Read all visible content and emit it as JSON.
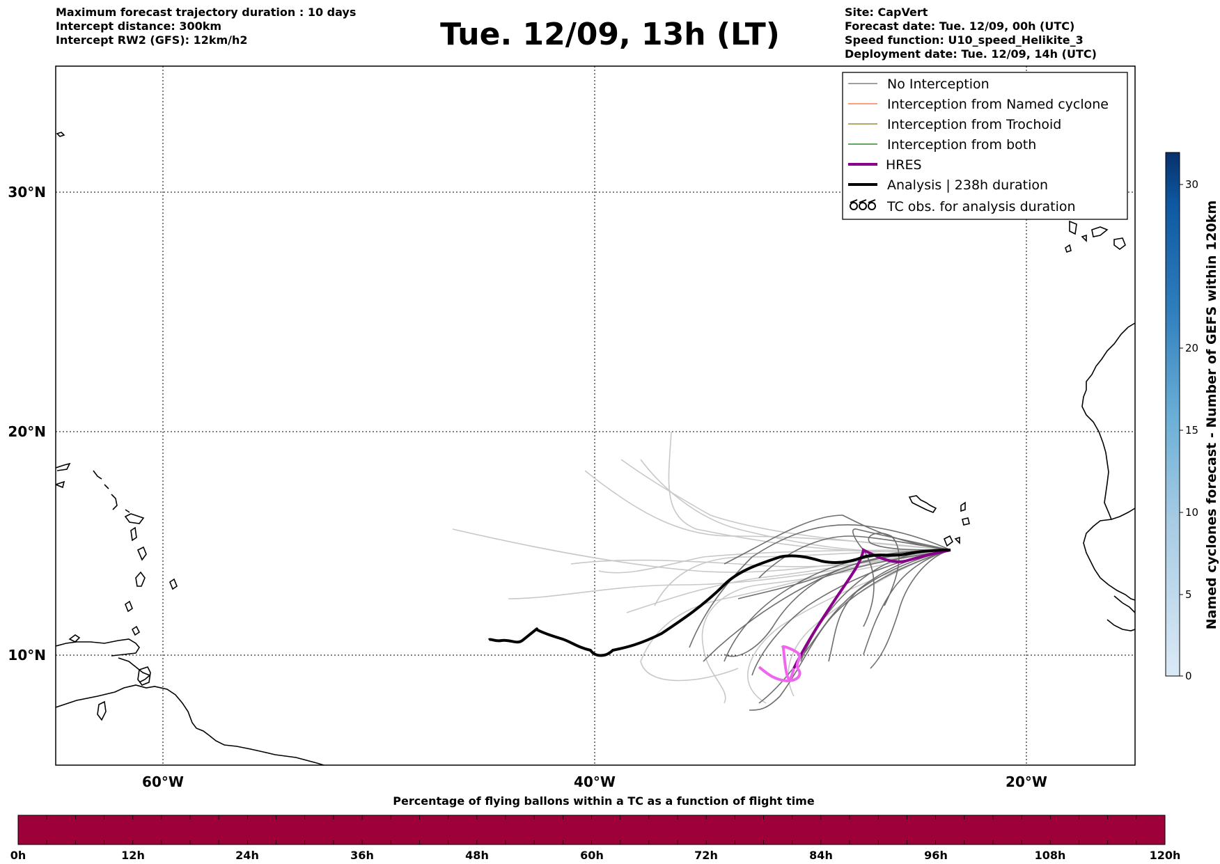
{
  "header_left": [
    "Maximum forecast trajectory duration : 10 days",
    "Intercept distance: 300km",
    "Intercept RW2 (GFS):  12km/h2"
  ],
  "header_right": [
    "Site: CapVert",
    "Forecast date: Tue. 12/09, 00h (UTC)",
    "Speed function: U10_speed_Helikite_3",
    "Deployment date: Tue. 12/09, 14h (UTC)"
  ],
  "title": "Tue. 12/09, 13h (LT)",
  "map": {
    "lon_range": [
      -65,
      -15
    ],
    "lat_range": [
      5,
      35
    ],
    "lat_ticks": [
      "30°N",
      "20°N",
      "10°N"
    ],
    "lon_ticks": [
      "60°W",
      "40°W",
      "20°W"
    ]
  },
  "legend": [
    {
      "label": "No Interception",
      "color": "#808080",
      "style": "thin"
    },
    {
      "label": "Interception from Named cyclone",
      "color": "#ff7f50",
      "style": "thin"
    },
    {
      "label": "Interception from Trochoid",
      "color": "#9a8a3a",
      "style": "thin"
    },
    {
      "label": "Interception from both",
      "color": "#2e8b2e",
      "style": "thin"
    },
    {
      "label": "HRES",
      "color": "#8b008b",
      "style": "thick"
    },
    {
      "label": "Analysis | 238h duration",
      "color": "#000000",
      "style": "thick"
    },
    {
      "label": "TC obs. for analysis duration",
      "color": "#000000",
      "style": "symbol"
    }
  ],
  "colorbar_right": {
    "label": "Named cyclones forecast - Number of GEFS within 120km",
    "ticks": [
      "0",
      "5",
      "10",
      "15",
      "20",
      "30"
    ],
    "range": [
      0,
      32
    ],
    "color_low": "#dbe9f6",
    "color_high": "#08306b"
  },
  "colorbar_bottom": {
    "label": "Percentage of flying ballons within a TC as a function of flight time",
    "ticks": [
      "0h",
      "12h",
      "24h",
      "36h",
      "48h",
      "60h",
      "72h",
      "84h",
      "96h",
      "108h",
      "120h"
    ],
    "fill_color": "#9e003a"
  },
  "colors": {
    "ensemble_light": "#c8c8c8",
    "ensemble_dark": "#6e6e6e",
    "hres": "#8b008b",
    "hres_tail": "#ee66ee",
    "analysis": "#000000"
  }
}
